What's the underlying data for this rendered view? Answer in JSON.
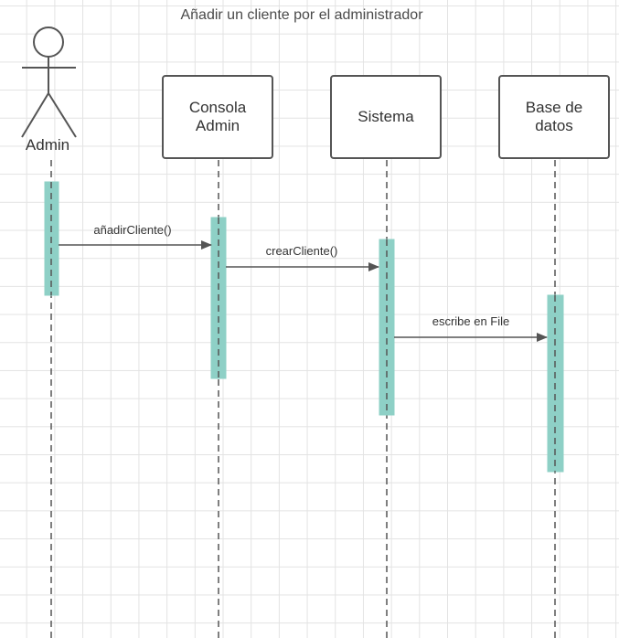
{
  "title": "Añadir un cliente por el administrador",
  "actor": {
    "label": "Admin",
    "icon": "stick-figure-icon"
  },
  "participants": [
    {
      "id": "consola",
      "label": "Consola\nAdmin"
    },
    {
      "id": "sistema",
      "label": "Sistema"
    },
    {
      "id": "bd",
      "label": "Base de\ndatos"
    }
  ],
  "messages": [
    {
      "from": "admin",
      "to": "consola",
      "label": "añadirCliente()"
    },
    {
      "from": "consola",
      "to": "sistema",
      "label": "crearCliente()"
    },
    {
      "from": "sistema",
      "to": "bd",
      "label": "escribe en File"
    }
  ],
  "colors": {
    "activation": "#8ed0c6",
    "line": "#555555",
    "grid": "#e3e3e3",
    "text": "#333333"
  }
}
